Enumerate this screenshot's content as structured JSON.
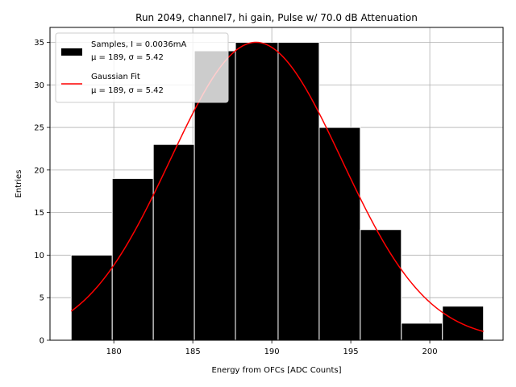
{
  "chart_data": {
    "type": "bar",
    "title": "Run 2049, channel7, hi gain, Pulse w/ 70.0 dB Attenuation",
    "xlabel": "Energy from OFCs [ADC Counts]",
    "ylabel": "Entries",
    "xlim": [
      175.96,
      204.64
    ],
    "ylim": [
      0,
      36.75
    ],
    "xticks": [
      180,
      185,
      190,
      195,
      200
    ],
    "yticks": [
      0,
      5,
      10,
      15,
      20,
      25,
      30,
      35
    ],
    "grid": true,
    "legend_position": "upper-left",
    "histogram": {
      "name": "Samples, I = 0.0036mA",
      "stats": "μ = 189, σ = 5.42",
      "color": "#000000",
      "edge_color": "#ffffff",
      "bins": [
        {
          "x0": 177.3,
          "x1": 179.9,
          "count": 10
        },
        {
          "x0": 179.9,
          "x1": 182.5,
          "count": 19
        },
        {
          "x0": 182.5,
          "x1": 185.1,
          "count": 23
        },
        {
          "x0": 185.1,
          "x1": 187.7,
          "count": 34
        },
        {
          "x0": 187.7,
          "x1": 190.4,
          "count": 35
        },
        {
          "x0": 190.4,
          "x1": 193.0,
          "count": 35
        },
        {
          "x0": 193.0,
          "x1": 195.6,
          "count": 25
        },
        {
          "x0": 195.6,
          "x1": 198.2,
          "count": 13
        },
        {
          "x0": 198.2,
          "x1": 200.8,
          "count": 2
        },
        {
          "x0": 200.8,
          "x1": 203.4,
          "count": 4
        }
      ]
    },
    "fit": {
      "name": "Gaussian Fit",
      "stats": "μ = 189, σ = 5.42",
      "color": "#ff0000",
      "amplitude": 35,
      "mu": 189,
      "sigma": 5.42,
      "x_start": 177.3,
      "x_end": 203.4
    }
  }
}
